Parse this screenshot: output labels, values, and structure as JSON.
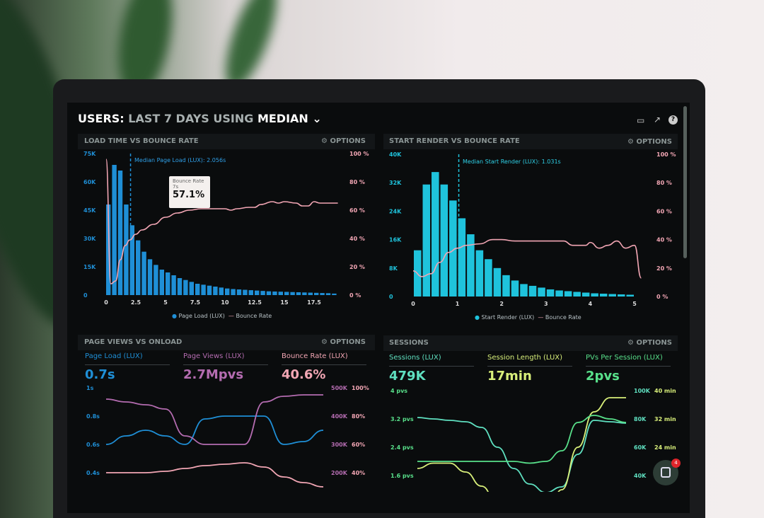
{
  "header": {
    "title_users": "USERS:",
    "title_range": "LAST 7 DAYS",
    "title_using": "USING",
    "title_stat": "MEDIAN",
    "icons": [
      "monitor-icon",
      "share-icon",
      "help-icon"
    ]
  },
  "colors": {
    "page_load": "#1f8fd6",
    "start_render": "#1fc3dc",
    "bounce": "#f2a6b4",
    "page_views": "#b46cb0",
    "sessions": "#5fe0c0",
    "session_length": "#d8ef7a",
    "pvs_per_session": "#58e08a"
  },
  "options_label": "OPTIONS",
  "tooltip": {
    "label": "Bounce Rate",
    "sub": "7s",
    "value": "57.1%"
  },
  "panels": {
    "load": {
      "title": "LOAD TIME VS BOUNCE RATE",
      "median": "Median Page Load (LUX): 2.056s",
      "legend": [
        "Page Load (LUX)",
        "Bounce Rate"
      ]
    },
    "render": {
      "title": "START RENDER VS BOUNCE RATE",
      "median": "Median Start Render (LUX): 1.031s",
      "legend": [
        "Start Render (LUX)",
        "Bounce Rate"
      ]
    },
    "pageviews": {
      "title": "PAGE VIEWS VS ONLOAD",
      "kpis": [
        {
          "label": "Page Load (LUX)",
          "value": "0.7s"
        },
        {
          "label": "Page Views (LUX)",
          "value": "2.7Mpvs"
        },
        {
          "label": "Bounce Rate (LUX)",
          "value": "40.6%"
        }
      ]
    },
    "sessions": {
      "title": "SESSIONS",
      "kpis": [
        {
          "label": "Sessions (LUX)",
          "value": "479K"
        },
        {
          "label": "Session Length (LUX)",
          "value": "17min"
        },
        {
          "label": "PVs Per Session (LUX)",
          "value": "2pvs"
        }
      ]
    }
  },
  "chat": {
    "badge": "4"
  },
  "chart_data": [
    {
      "type": "bar",
      "title": "LOAD TIME VS BOUNCE RATE",
      "x_ticks": [
        "0",
        "2.5",
        "5",
        "7.5",
        "10",
        "12.5",
        "15",
        "17.5"
      ],
      "y_ticks": [
        "0",
        "15K",
        "30K",
        "45K",
        "60K",
        "75K"
      ],
      "y2_ticks": [
        "0 %",
        "20 %",
        "40 %",
        "60 %",
        "80 %",
        "100 %"
      ],
      "ylim": [
        0,
        75000
      ],
      "y2lim": [
        0,
        100
      ],
      "median": 2.056,
      "x": [
        0,
        0.5,
        1,
        1.5,
        2,
        2.5,
        3,
        3.5,
        4,
        4.5,
        5,
        5.5,
        6,
        6.5,
        7,
        7.5,
        8,
        8.5,
        9,
        9.5,
        10,
        10.5,
        11,
        11.5,
        12,
        12.5,
        13,
        13.5,
        14,
        14.5,
        15,
        15.5,
        16,
        16.5,
        17,
        17.5,
        18,
        18.5,
        19
      ],
      "series": [
        {
          "name": "Page Load (LUX)",
          "values": [
            48000,
            69000,
            66000,
            48000,
            37000,
            29000,
            23000,
            19000,
            16000,
            13500,
            12000,
            10500,
            9000,
            8000,
            7000,
            6000,
            5500,
            5000,
            4500,
            4000,
            3500,
            3200,
            3000,
            2800,
            2600,
            2400,
            2200,
            2000,
            1900,
            1800,
            1700,
            1600,
            1500,
            1400,
            1300,
            1200,
            1100,
            1000,
            800
          ]
        },
        {
          "name": "Bounce Rate",
          "x": [
            0,
            0.4,
            0.8,
            1.2,
            1.6,
            2,
            2.5,
            3,
            4,
            5,
            6,
            7,
            8,
            9,
            10,
            10.5,
            11,
            12,
            12.5,
            13,
            14,
            14.5,
            15,
            16,
            16.5,
            17,
            17.5,
            18,
            19,
            19.5
          ],
          "values": [
            96,
            8,
            10,
            25,
            35,
            39,
            43,
            46,
            50,
            55,
            58,
            60,
            61,
            61,
            61,
            60,
            61,
            62,
            62,
            64,
            66,
            65,
            66,
            65,
            63,
            63,
            66,
            65,
            65,
            65
          ]
        }
      ]
    },
    {
      "type": "bar",
      "title": "START RENDER VS BOUNCE RATE",
      "x_ticks": [
        "0",
        "1",
        "2",
        "3",
        "4",
        "5"
      ],
      "y_ticks": [
        "0",
        "8K",
        "16K",
        "24K",
        "32K",
        "40K"
      ],
      "y2_ticks": [
        "0 %",
        "20 %",
        "40 %",
        "60 %",
        "80 %",
        "100 %"
      ],
      "ylim": [
        0,
        40000
      ],
      "y2lim": [
        0,
        100
      ],
      "median": 1.031,
      "x": [
        0.1,
        0.3,
        0.5,
        0.7,
        0.9,
        1.1,
        1.3,
        1.5,
        1.7,
        1.9,
        2.1,
        2.3,
        2.5,
        2.7,
        2.9,
        3.1,
        3.3,
        3.5,
        3.7,
        3.9,
        4.1,
        4.3,
        4.5,
        4.7,
        4.9
      ],
      "series": [
        {
          "name": "Start Render (LUX)",
          "values": [
            13000,
            31500,
            35000,
            31500,
            27000,
            22000,
            17500,
            13000,
            10500,
            8000,
            6000,
            4500,
            3500,
            3000,
            2500,
            2000,
            1700,
            1500,
            1300,
            1100,
            900,
            800,
            700,
            600,
            500
          ]
        },
        {
          "name": "Bounce Rate",
          "x": [
            0,
            0.2,
            0.4,
            0.6,
            0.8,
            1,
            1.2,
            1.5,
            1.8,
            2,
            2.3,
            2.6,
            3,
            3.4,
            3.6,
            3.9,
            4,
            4.2,
            4.4,
            4.6,
            4.8,
            5,
            5.15
          ],
          "values": [
            18,
            14,
            16,
            24,
            31,
            34,
            36,
            37,
            40,
            40,
            39,
            39,
            39,
            39,
            36,
            36,
            38,
            34,
            36,
            39,
            34,
            36,
            13
          ]
        }
      ]
    },
    {
      "type": "line",
      "title": "PAGE VIEWS VS ONLOAD",
      "y_ticks": [
        "0.4s",
        "0.6s",
        "0.8s",
        "1s"
      ],
      "y2_ticks": [
        "200K",
        "300K",
        "400K",
        "500K"
      ],
      "y3_ticks": [
        "40%",
        "60%",
        "80%",
        "100%"
      ],
      "series": [
        {
          "name": "Page Load (LUX)",
          "values": [
            0.6,
            0.66,
            0.7,
            0.66,
            0.6,
            0.78,
            0.8,
            0.8,
            0.8,
            0.6,
            0.62,
            0.7
          ]
        },
        {
          "name": "Page Views (LUX)",
          "values": [
            460,
            450,
            440,
            425,
            330,
            300,
            300,
            300,
            450,
            470,
            475,
            475
          ]
        },
        {
          "name": "Bounce Rate (LUX)",
          "values": [
            40,
            40,
            40,
            41,
            43,
            45,
            46,
            47,
            44,
            37,
            33,
            30
          ]
        }
      ]
    },
    {
      "type": "line",
      "title": "SESSIONS",
      "y_ticks": [
        "1.6 pvs",
        "2.4 pvs",
        "3.2 pvs",
        "4 pvs"
      ],
      "y2_ticks": [
        "40K",
        "60K",
        "80K",
        "100K"
      ],
      "y3_ticks": [
        "24 min",
        "32 min",
        "40 min"
      ],
      "series": [
        {
          "name": "Sessions (LUX)",
          "values": [
            81,
            80,
            79,
            78,
            74,
            60,
            45,
            34,
            28,
            32,
            55,
            79,
            78,
            77
          ]
        },
        {
          "name": "Session Length (LUX)",
          "values": [
            18,
            19.5,
            19.5,
            17,
            13,
            8,
            5,
            3,
            4,
            12,
            24,
            34,
            38,
            38
          ]
        },
        {
          "name": "PVs Per Session (LUX)",
          "values": [
            2.0,
            2.0,
            2.0,
            2.0,
            2.0,
            2.0,
            2.0,
            1.95,
            2.0,
            2.3,
            3.1,
            3.3,
            3.2,
            3.1
          ]
        }
      ]
    }
  ]
}
